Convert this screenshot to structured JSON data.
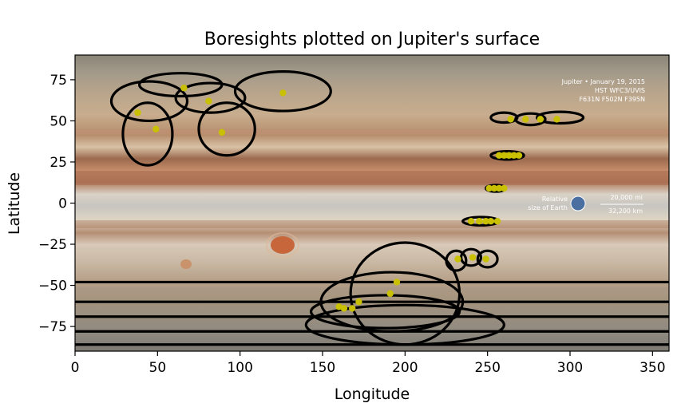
{
  "chart_data": {
    "type": "scatter",
    "title": "Boresights plotted on Jupiter's surface",
    "xlabel": "Longitude",
    "ylabel": "Latitude",
    "xlim": [
      0,
      360
    ],
    "ylim": [
      -90,
      90
    ],
    "xticks": [
      0,
      50,
      100,
      150,
      200,
      250,
      300,
      350
    ],
    "yticks": [
      -75,
      -50,
      -25,
      0,
      25,
      50,
      75
    ],
    "grid": false,
    "legend": "none",
    "marker_color": "#c8c000",
    "footprint_color": "#000000",
    "boresights": [
      {
        "x": 38,
        "y": 55
      },
      {
        "x": 49,
        "y": 45
      },
      {
        "x": 66,
        "y": 70
      },
      {
        "x": 81,
        "y": 62
      },
      {
        "x": 89,
        "y": 43
      },
      {
        "x": 126,
        "y": 67
      },
      {
        "x": 264,
        "y": 51
      },
      {
        "x": 273,
        "y": 51
      },
      {
        "x": 282,
        "y": 51
      },
      {
        "x": 292,
        "y": 51
      },
      {
        "x": 257,
        "y": 29
      },
      {
        "x": 260,
        "y": 29
      },
      {
        "x": 263,
        "y": 29
      },
      {
        "x": 266,
        "y": 29
      },
      {
        "x": 269,
        "y": 29
      },
      {
        "x": 251,
        "y": 9
      },
      {
        "x": 254,
        "y": 9
      },
      {
        "x": 257,
        "y": 9
      },
      {
        "x": 260,
        "y": 9
      },
      {
        "x": 240,
        "y": -11
      },
      {
        "x": 245,
        "y": -11
      },
      {
        "x": 249,
        "y": -11
      },
      {
        "x": 252,
        "y": -11
      },
      {
        "x": 256,
        "y": -11
      },
      {
        "x": 232,
        "y": -34
      },
      {
        "x": 241,
        "y": -33
      },
      {
        "x": 249,
        "y": -34
      },
      {
        "x": 160,
        "y": -63
      },
      {
        "x": 163,
        "y": -64
      },
      {
        "x": 168,
        "y": -64
      },
      {
        "x": 172,
        "y": -60
      },
      {
        "x": 191,
        "y": -55
      },
      {
        "x": 195,
        "y": -48
      }
    ],
    "footprints": [
      {
        "cx": 45,
        "cy": 62,
        "w": 46,
        "h": 24
      },
      {
        "cx": 64,
        "cy": 72,
        "w": 50,
        "h": 14
      },
      {
        "cx": 82,
        "cy": 64,
        "w": 42,
        "h": 18
      },
      {
        "cx": 126,
        "cy": 68,
        "w": 58,
        "h": 24
      },
      {
        "cx": 44,
        "cy": 42,
        "w": 30,
        "h": 38
      },
      {
        "cx": 92,
        "cy": 45,
        "w": 34,
        "h": 32
      },
      {
        "cx": 260,
        "cy": 52,
        "w": 16,
        "h": 6
      },
      {
        "cx": 276,
        "cy": 51,
        "w": 18,
        "h": 7
      },
      {
        "cx": 294,
        "cy": 52,
        "w": 28,
        "h": 7
      },
      {
        "cx": 262,
        "cy": 29,
        "w": 20,
        "h": 5
      },
      {
        "cx": 255,
        "cy": 9,
        "w": 12,
        "h": 4
      },
      {
        "cx": 246,
        "cy": -11,
        "w": 22,
        "h": 5
      },
      {
        "cx": 231,
        "cy": -35,
        "w": 12,
        "h": 12
      },
      {
        "cx": 240,
        "cy": -33,
        "w": 12,
        "h": 10
      },
      {
        "cx": 250,
        "cy": -34,
        "w": 12,
        "h": 10
      },
      {
        "cx": 200,
        "cy": -55,
        "w": 66,
        "h": 62
      },
      {
        "cx": 192,
        "cy": -60,
        "w": 86,
        "h": 36
      },
      {
        "cx": 200,
        "cy": -74,
        "w": 120,
        "h": 24
      },
      {
        "cx": 188,
        "cy": -66,
        "w": 90,
        "h": 20
      }
    ],
    "band_lines": [
      {
        "y": -48
      },
      {
        "y": -60
      },
      {
        "y": -69
      },
      {
        "y": -78
      },
      {
        "y": -86
      }
    ],
    "map_annotations": [
      "Jupiter • January 19, 2015",
      "HST WFC3/UVIS",
      "F631N F502N F395N",
      "20,000 mi",
      "32,200 km",
      "Relative",
      "size of Earth"
    ]
  }
}
